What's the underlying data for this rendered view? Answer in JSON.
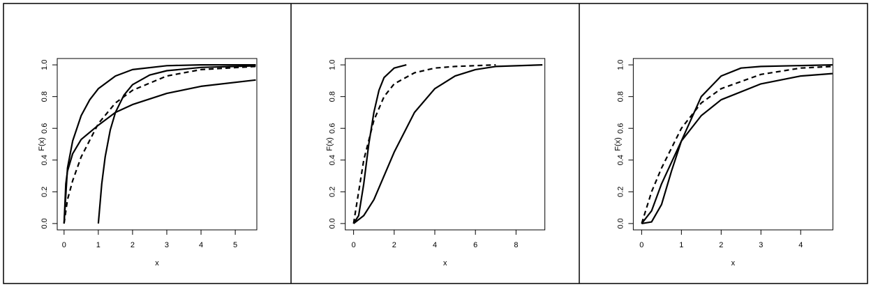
{
  "chart_data": [
    {
      "type": "line",
      "xlabel": "x",
      "ylabel": "F(x)",
      "xlim": [
        -0.2,
        5.63
      ],
      "ylim": [
        -0.04,
        1.04
      ],
      "xticks": [
        0,
        1,
        2,
        3,
        4,
        5
      ],
      "yticks": [
        {
          "value": 0,
          "label": "0.0"
        },
        0.2,
        0.4,
        0.6,
        0.8,
        {
          "value": 1,
          "label": "1.0"
        }
      ],
      "series": [
        {
          "color": "#000000",
          "dash": false,
          "x": [
            0,
            0.1,
            0.25,
            0.5,
            0.75,
            1,
            1.5,
            2,
            3,
            4,
            5.6
          ],
          "values": [
            0,
            0.35,
            0.52,
            0.68,
            0.78,
            0.85,
            0.93,
            0.97,
            0.995,
            1,
            1
          ]
        },
        {
          "color": "#000000",
          "dash": false,
          "x": [
            1,
            1.1,
            1.2,
            1.35,
            1.5,
            1.75,
            2,
            2.5,
            3,
            4,
            5.6
          ],
          "values": [
            0,
            0.25,
            0.42,
            0.59,
            0.7,
            0.81,
            0.875,
            0.936,
            0.963,
            0.984,
            0.994
          ]
        },
        {
          "color": "#000000",
          "dash": false,
          "x": [
            0,
            0.05,
            0.1,
            0.25,
            0.5,
            1,
            1.5,
            2,
            3,
            4,
            5.6
          ],
          "values": [
            0,
            0.25,
            0.33,
            0.44,
            0.53,
            0.62,
            0.7,
            0.75,
            0.82,
            0.865,
            0.905
          ]
        },
        {
          "color": "#000000",
          "dash": true,
          "x": [
            0,
            0.1,
            0.25,
            0.5,
            1,
            1.5,
            2,
            3,
            4,
            5.6
          ],
          "values": [
            0,
            0.15,
            0.27,
            0.42,
            0.63,
            0.76,
            0.84,
            0.93,
            0.97,
            0.99
          ]
        }
      ]
    },
    {
      "type": "line",
      "xlabel": "x",
      "ylabel": "F(x)",
      "xlim": [
        -0.41,
        9.42
      ],
      "ylim": [
        -0.04,
        1.04
      ],
      "xticks": [
        0,
        2,
        4,
        6,
        8
      ],
      "yticks": [
        {
          "value": 0,
          "label": "0.0"
        },
        0.2,
        0.4,
        0.6,
        0.8,
        {
          "value": 1,
          "label": "1.0"
        }
      ],
      "series": [
        {
          "color": "#000000",
          "dash": false,
          "x": [
            0,
            0.25,
            0.5,
            0.75,
            1,
            1.25,
            1.5,
            2,
            2.6
          ],
          "values": [
            0,
            0.05,
            0.25,
            0.5,
            0.7,
            0.84,
            0.92,
            0.98,
            1
          ]
        },
        {
          "color": "#000000",
          "dash": true,
          "x": [
            0,
            0.25,
            0.5,
            1,
            1.5,
            2,
            3,
            4,
            5,
            7
          ],
          "values": [
            0,
            0.2,
            0.4,
            0.65,
            0.8,
            0.88,
            0.95,
            0.98,
            0.99,
            1
          ]
        },
        {
          "color": "#000000",
          "dash": false,
          "x": [
            0,
            0.5,
            1,
            2,
            3,
            4,
            5,
            6,
            7,
            9.3
          ],
          "values": [
            0,
            0.05,
            0.15,
            0.45,
            0.7,
            0.85,
            0.93,
            0.97,
            0.99,
            1
          ]
        }
      ]
    },
    {
      "type": "line",
      "xlabel": "x",
      "ylabel": "F(x)",
      "xlim": [
        -0.21,
        4.81
      ],
      "ylim": [
        -0.04,
        1.04
      ],
      "xticks": [
        0,
        1,
        2,
        3,
        4
      ],
      "yticks": [
        {
          "value": 0,
          "label": "0.0"
        },
        0.2,
        0.4,
        0.6,
        0.8,
        {
          "value": 1,
          "label": "1.0"
        }
      ],
      "series": [
        {
          "color": "#000000",
          "dash": false,
          "x": [
            0,
            0.25,
            0.5,
            0.75,
            1,
            1.5,
            2,
            2.5,
            3,
            4.8
          ],
          "values": [
            0,
            0.01,
            0.12,
            0.33,
            0.52,
            0.8,
            0.93,
            0.98,
            0.99,
            1
          ]
        },
        {
          "color": "#000000",
          "dash": true,
          "x": [
            0,
            0.25,
            0.5,
            1,
            1.5,
            2,
            3,
            4,
            4.8
          ],
          "values": [
            0,
            0.2,
            0.35,
            0.6,
            0.76,
            0.85,
            0.94,
            0.98,
            0.99
          ]
        },
        {
          "color": "#000000",
          "dash": false,
          "x": [
            0,
            0.25,
            0.5,
            1,
            1.5,
            2,
            3,
            4,
            4.8
          ],
          "values": [
            0,
            0.08,
            0.25,
            0.52,
            0.68,
            0.78,
            0.88,
            0.93,
            0.945
          ]
        }
      ]
    }
  ]
}
